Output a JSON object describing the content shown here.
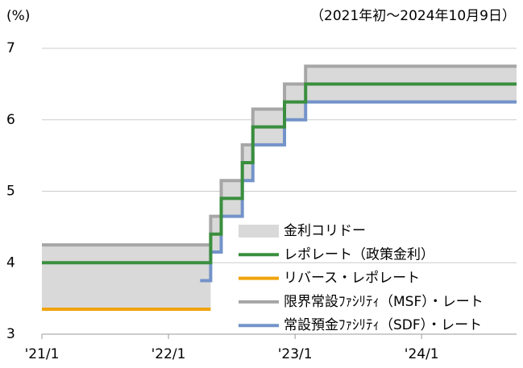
{
  "chart_data": {
    "type": "step",
    "y_unit": "(%)",
    "subtitle": "（2021年初～2024年10月9日）",
    "x": [
      "2021-01",
      "2022-04",
      "2022-05",
      "2022-06",
      "2022-08",
      "2022-09",
      "2022-12",
      "2023-02",
      "2024-10"
    ],
    "xlim": [
      "2021-01",
      "2024-10"
    ],
    "xticks": [
      {
        "value": "2021-01",
        "label": "'21/1"
      },
      {
        "value": "2022-01",
        "label": "'22/1"
      },
      {
        "value": "2023-01",
        "label": "'23/1"
      },
      {
        "value": "2024-01",
        "label": "'24/1"
      }
    ],
    "ylim": [
      3,
      7
    ],
    "yticks": [
      3,
      4,
      5,
      6,
      7
    ],
    "grid": true,
    "corridor": {
      "name": "金利コリドー",
      "color": "#d9d9d9"
    },
    "series": [
      {
        "name": "レポレート（政策金利）",
        "color": "#3a8f3e",
        "values": [
          4.0,
          4.0,
          4.4,
          4.9,
          5.4,
          5.9,
          6.25,
          6.5,
          6.5
        ]
      },
      {
        "name": "リバース・レポレート",
        "color": "#f0a30a",
        "values": [
          3.35,
          3.35,
          null,
          null,
          null,
          null,
          null,
          null,
          null
        ]
      },
      {
        "name": "限界常設ﾌｧｼﾘﾃｨ（MSF）・レート",
        "color": "#a6a6a6",
        "values": [
          4.25,
          4.25,
          4.65,
          5.15,
          5.65,
          6.15,
          6.5,
          6.75,
          6.75
        ]
      },
      {
        "name": "常設預金ﾌｧｼﾘﾃｨ（SDF）・レート",
        "color": "#7393c9",
        "values": [
          null,
          3.75,
          4.15,
          4.65,
          5.15,
          5.65,
          6.0,
          6.25,
          6.25
        ]
      }
    ]
  }
}
